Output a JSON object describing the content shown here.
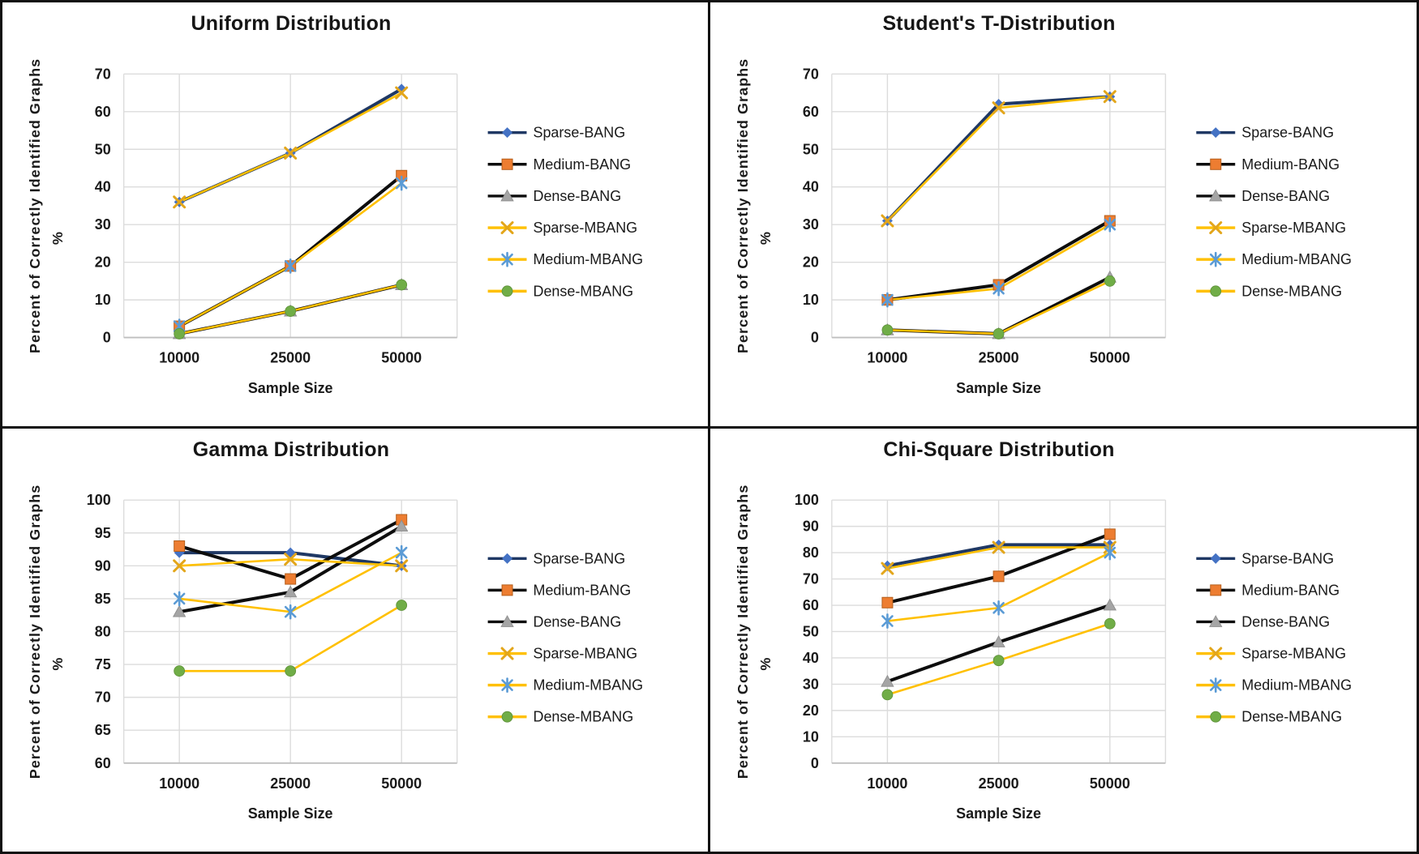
{
  "figure": {
    "x_axis_title": "Sample Size",
    "y_axis_title": "Percent of Correctly Identified Graphs",
    "y_axis_title_line2": "%",
    "categories": [
      "10000",
      "25000",
      "50000"
    ],
    "legend_entries": [
      "Sparse-BANG",
      "Medium-BANG",
      "Dense-BANG",
      "Sparse-MBANG",
      "Medium-MBANG",
      "Dense-MBANG"
    ],
    "colors": {
      "navy_line": "#1f3864",
      "black_line": "#0d0d0d",
      "gold_line": "#FFC000",
      "blue_diamond": "#4472C4",
      "orange_square": "#ED7D31",
      "gray_triangle": "#A5A5A5",
      "gold_x": "#E3A61B",
      "blue_asterisk": "#5B9BD5",
      "green_circle": "#70AD47",
      "gridline": "#dcdcdc",
      "axis_line": "#bfbfbf",
      "text": "#1a1a1a"
    }
  },
  "chart_data": [
    {
      "type": "line",
      "title": "Uniform Distribution",
      "xlabel": "Sample Size",
      "ylabel": "Percent of Correctly Identified Graphs %",
      "categories": [
        "10000",
        "25000",
        "50000"
      ],
      "ylim": [
        0,
        70
      ],
      "ytick_step": 10,
      "yticks": [
        "0",
        "10",
        "20",
        "30",
        "40",
        "50",
        "60",
        "70"
      ],
      "grid": true,
      "legend_position": "right",
      "series": [
        {
          "name": "Sparse-BANG",
          "line_color": "#1f3864",
          "marker": "diamond",
          "marker_color": "#4472C4",
          "values": [
            36,
            49,
            66
          ]
        },
        {
          "name": "Medium-BANG",
          "line_color": "#0d0d0d",
          "marker": "square",
          "marker_color": "#ED7D31",
          "values": [
            3,
            19,
            43
          ]
        },
        {
          "name": "Dense-BANG",
          "line_color": "#0d0d0d",
          "marker": "triangle",
          "marker_color": "#A5A5A5",
          "values": [
            1,
            7,
            14
          ]
        },
        {
          "name": "Sparse-MBANG",
          "line_color": "#FFC000",
          "marker": "x",
          "marker_color": "#E3A61B",
          "values": [
            36,
            49,
            65
          ]
        },
        {
          "name": "Medium-MBANG",
          "line_color": "#FFC000",
          "marker": "asterisk",
          "marker_color": "#5B9BD5",
          "values": [
            3,
            19,
            41
          ]
        },
        {
          "name": "Dense-MBANG",
          "line_color": "#FFC000",
          "marker": "circle",
          "marker_color": "#70AD47",
          "values": [
            1,
            7,
            14
          ]
        }
      ]
    },
    {
      "type": "line",
      "title": "Student's T-Distribution",
      "xlabel": "Sample Size",
      "ylabel": "Percent of Correctly Identified Graphs %",
      "categories": [
        "10000",
        "25000",
        "50000"
      ],
      "ylim": [
        0,
        70
      ],
      "ytick_step": 10,
      "yticks": [
        "0",
        "10",
        "20",
        "30",
        "40",
        "50",
        "60",
        "70"
      ],
      "grid": true,
      "legend_position": "right",
      "series": [
        {
          "name": "Sparse-BANG",
          "line_color": "#1f3864",
          "marker": "diamond",
          "marker_color": "#4472C4",
          "values": [
            31,
            62,
            64
          ]
        },
        {
          "name": "Medium-BANG",
          "line_color": "#0d0d0d",
          "marker": "square",
          "marker_color": "#ED7D31",
          "values": [
            10,
            14,
            31
          ]
        },
        {
          "name": "Dense-BANG",
          "line_color": "#0d0d0d",
          "marker": "triangle",
          "marker_color": "#A5A5A5",
          "values": [
            2,
            1,
            16
          ]
        },
        {
          "name": "Sparse-MBANG",
          "line_color": "#FFC000",
          "marker": "x",
          "marker_color": "#E3A61B",
          "values": [
            31,
            61,
            64
          ]
        },
        {
          "name": "Medium-MBANG",
          "line_color": "#FFC000",
          "marker": "asterisk",
          "marker_color": "#5B9BD5",
          "values": [
            10,
            13,
            30
          ]
        },
        {
          "name": "Dense-MBANG",
          "line_color": "#FFC000",
          "marker": "circle",
          "marker_color": "#70AD47",
          "values": [
            2,
            1,
            15
          ]
        }
      ]
    },
    {
      "type": "line",
      "title": "Gamma Distribution",
      "xlabel": "Sample Size",
      "ylabel": "Percent of Correctly Identified Graphs %",
      "categories": [
        "10000",
        "25000",
        "50000"
      ],
      "ylim": [
        60,
        100
      ],
      "ytick_step": 5,
      "yticks": [
        "60",
        "65",
        "70",
        "75",
        "80",
        "85",
        "90",
        "95",
        "100"
      ],
      "grid": true,
      "legend_position": "right",
      "series": [
        {
          "name": "Sparse-BANG",
          "line_color": "#1f3864",
          "marker": "diamond",
          "marker_color": "#4472C4",
          "values": [
            92,
            92,
            90
          ]
        },
        {
          "name": "Medium-BANG",
          "line_color": "#0d0d0d",
          "marker": "square",
          "marker_color": "#ED7D31",
          "values": [
            93,
            88,
            97
          ]
        },
        {
          "name": "Dense-BANG",
          "line_color": "#0d0d0d",
          "marker": "triangle",
          "marker_color": "#A5A5A5",
          "values": [
            83,
            86,
            96
          ]
        },
        {
          "name": "Sparse-MBANG",
          "line_color": "#FFC000",
          "marker": "x",
          "marker_color": "#E3A61B",
          "values": [
            90,
            91,
            90
          ]
        },
        {
          "name": "Medium-MBANG",
          "line_color": "#FFC000",
          "marker": "asterisk",
          "marker_color": "#5B9BD5",
          "values": [
            85,
            83,
            92
          ]
        },
        {
          "name": "Dense-MBANG",
          "line_color": "#FFC000",
          "marker": "circle",
          "marker_color": "#70AD47",
          "values": [
            74,
            74,
            84
          ]
        }
      ]
    },
    {
      "type": "line",
      "title": "Chi-Square Distribution",
      "xlabel": "Sample Size",
      "ylabel": "Percent of Correctly Identified Graphs %",
      "categories": [
        "10000",
        "25000",
        "50000"
      ],
      "ylim": [
        0,
        100
      ],
      "ytick_step": 10,
      "yticks": [
        "0",
        "10",
        "20",
        "30",
        "40",
        "50",
        "60",
        "70",
        "80",
        "90",
        "100"
      ],
      "grid": true,
      "legend_position": "right",
      "series": [
        {
          "name": "Sparse-BANG",
          "line_color": "#1f3864",
          "marker": "diamond",
          "marker_color": "#4472C4",
          "values": [
            75,
            83,
            83
          ]
        },
        {
          "name": "Medium-BANG",
          "line_color": "#0d0d0d",
          "marker": "square",
          "marker_color": "#ED7D31",
          "values": [
            61,
            71,
            87
          ]
        },
        {
          "name": "Dense-BANG",
          "line_color": "#0d0d0d",
          "marker": "triangle",
          "marker_color": "#A5A5A5",
          "values": [
            31,
            46,
            60
          ]
        },
        {
          "name": "Sparse-MBANG",
          "line_color": "#FFC000",
          "marker": "x",
          "marker_color": "#E3A61B",
          "values": [
            74,
            82,
            82
          ]
        },
        {
          "name": "Medium-MBANG",
          "line_color": "#FFC000",
          "marker": "asterisk",
          "marker_color": "#5B9BD5",
          "values": [
            54,
            59,
            80
          ]
        },
        {
          "name": "Dense-MBANG",
          "line_color": "#FFC000",
          "marker": "circle",
          "marker_color": "#70AD47",
          "values": [
            26,
            39,
            53
          ]
        }
      ]
    }
  ]
}
